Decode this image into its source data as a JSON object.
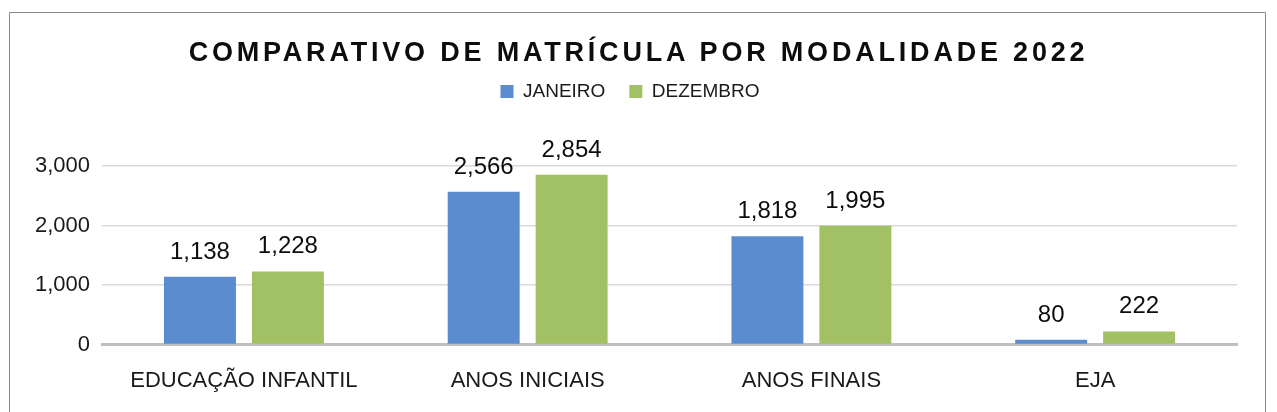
{
  "chart_data": {
    "type": "bar",
    "title": "COMPARATIVO DE MATRÍCULA POR MODALIDADE 2022",
    "categories": [
      "EDUCAÇÃO INFANTIL",
      "ANOS INICIAIS",
      "ANOS FINAIS",
      "EJA"
    ],
    "series": [
      {
        "name": "JANEIRO",
        "color": "#5a8ccf",
        "values": [
          1138,
          2566,
          1818,
          80
        ],
        "value_labels": [
          "1,138",
          "2,566",
          "1,818",
          "80"
        ]
      },
      {
        "name": "DEZEMBRO",
        "color": "#a2c064",
        "values": [
          1228,
          2854,
          1995,
          222
        ],
        "value_labels": [
          "1,228",
          "2,854",
          "1,995",
          "222"
        ]
      }
    ],
    "ylim": [
      0,
      3000
    ],
    "yticks": [
      0,
      {
        "value": 1000,
        "label": "1,000"
      },
      {
        "value": 2000,
        "label": "2,000"
      },
      {
        "value": 3000,
        "label": "3,000"
      }
    ],
    "grid": "y",
    "legend": "top"
  }
}
